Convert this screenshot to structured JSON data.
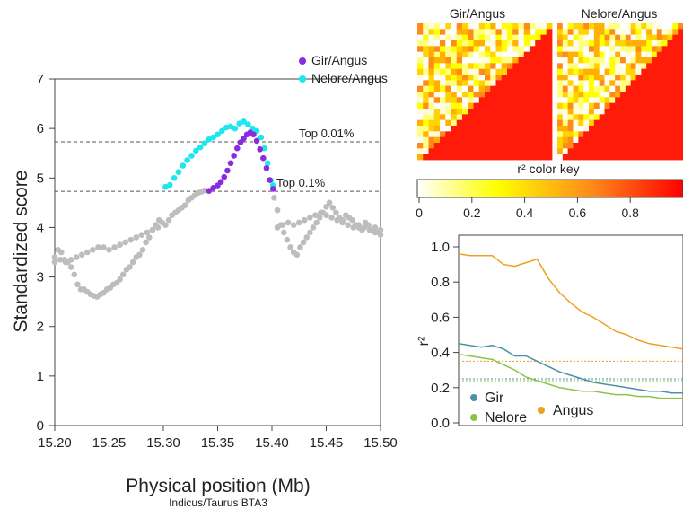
{
  "chart_data": [
    {
      "type": "scatter",
      "xlabel": "Physical position (Mb)",
      "subtitle": "Indicus/Taurus BTA3",
      "ylabel": "Standardized score",
      "xlim": [
        15.2,
        15.5
      ],
      "ylim": [
        0,
        7
      ],
      "x_ticks": [
        "15.20",
        "15.25",
        "15.30",
        "15.35",
        "15.40",
        "15.45",
        "15.50"
      ],
      "y_ticks": [
        "0",
        "1",
        "2",
        "3",
        "4",
        "5",
        "6",
        "7"
      ],
      "legend_position": "top-right",
      "thresholds": [
        {
          "label": "Top 0.01%",
          "value": 5.73
        },
        {
          "label": "Top 0.1%",
          "value": 4.73
        }
      ],
      "series": [
        {
          "name": "Gir/Angus",
          "color": "#8a2be2",
          "points": [
            [
              15.342,
              4.74
            ],
            [
              15.346,
              4.8
            ],
            [
              15.35,
              4.85
            ],
            [
              15.353,
              4.92
            ],
            [
              15.356,
              5.02
            ],
            [
              15.359,
              5.15
            ],
            [
              15.362,
              5.3
            ],
            [
              15.365,
              5.45
            ],
            [
              15.368,
              5.6
            ],
            [
              15.371,
              5.72
            ],
            [
              15.374,
              5.8
            ],
            [
              15.377,
              5.88
            ],
            [
              15.38,
              5.92
            ],
            [
              15.383,
              5.88
            ],
            [
              15.386,
              5.75
            ],
            [
              15.389,
              5.58
            ],
            [
              15.392,
              5.4
            ],
            [
              15.395,
              5.2
            ],
            [
              15.398,
              4.96
            ],
            [
              15.401,
              4.78
            ]
          ]
        },
        {
          "name": "Nelore/Angus",
          "color": "#1ee6ee",
          "points": [
            [
              15.302,
              4.82
            ],
            [
              15.306,
              4.86
            ],
            [
              15.31,
              5.0
            ],
            [
              15.314,
              5.12
            ],
            [
              15.318,
              5.25
            ],
            [
              15.322,
              5.36
            ],
            [
              15.326,
              5.45
            ],
            [
              15.33,
              5.55
            ],
            [
              15.334,
              5.62
            ],
            [
              15.338,
              5.7
            ],
            [
              15.342,
              5.78
            ],
            [
              15.346,
              5.82
            ],
            [
              15.35,
              5.88
            ],
            [
              15.354,
              5.95
            ],
            [
              15.358,
              6.02
            ],
            [
              15.362,
              6.04
            ],
            [
              15.366,
              6.0
            ],
            [
              15.37,
              6.1
            ],
            [
              15.374,
              6.14
            ],
            [
              15.378,
              6.08
            ],
            [
              15.382,
              6.0
            ],
            [
              15.386,
              5.95
            ],
            [
              15.39,
              5.82
            ],
            [
              15.393,
              5.6
            ],
            [
              15.396,
              5.3
            ],
            [
              15.399,
              4.95
            ],
            [
              15.401,
              4.85
            ]
          ]
        },
        {
          "name": "",
          "color": "#bdbdbd",
          "points": [
            [
              15.2,
              3.4
            ],
            [
              15.203,
              3.55
            ],
            [
              15.206,
              3.5
            ],
            [
              15.209,
              3.35
            ],
            [
              15.212,
              3.3
            ],
            [
              15.215,
              3.2
            ],
            [
              15.218,
              3.05
            ],
            [
              15.221,
              2.85
            ],
            [
              15.224,
              2.75
            ],
            [
              15.227,
              2.75
            ],
            [
              15.23,
              2.7
            ],
            [
              15.233,
              2.65
            ],
            [
              15.236,
              2.62
            ],
            [
              15.239,
              2.6
            ],
            [
              15.242,
              2.65
            ],
            [
              15.245,
              2.68
            ],
            [
              15.248,
              2.75
            ],
            [
              15.251,
              2.78
            ],
            [
              15.254,
              2.85
            ],
            [
              15.257,
              2.88
            ],
            [
              15.26,
              2.95
            ],
            [
              15.263,
              3.05
            ],
            [
              15.266,
              3.15
            ],
            [
              15.269,
              3.2
            ],
            [
              15.272,
              3.3
            ],
            [
              15.275,
              3.4
            ],
            [
              15.278,
              3.45
            ],
            [
              15.281,
              3.55
            ],
            [
              15.284,
              3.7
            ],
            [
              15.287,
              3.8
            ],
            [
              15.29,
              3.95
            ],
            [
              15.293,
              4.05
            ],
            [
              15.296,
              4.15
            ],
            [
              15.299,
              4.1
            ],
            [
              15.302,
              4.05
            ],
            [
              15.305,
              4.15
            ],
            [
              15.308,
              4.25
            ],
            [
              15.311,
              4.3
            ],
            [
              15.314,
              4.35
            ],
            [
              15.317,
              4.4
            ],
            [
              15.32,
              4.45
            ],
            [
              15.323,
              4.55
            ],
            [
              15.326,
              4.6
            ],
            [
              15.329,
              4.65
            ],
            [
              15.332,
              4.7
            ],
            [
              15.335,
              4.72
            ],
            [
              15.338,
              4.75
            ],
            [
              15.402,
              4.6
            ],
            [
              15.405,
              4.35
            ],
            [
              15.408,
              4.05
            ],
            [
              15.411,
              3.9
            ],
            [
              15.414,
              3.75
            ],
            [
              15.417,
              3.6
            ],
            [
              15.42,
              3.5
            ],
            [
              15.423,
              3.45
            ],
            [
              15.426,
              3.6
            ],
            [
              15.429,
              3.7
            ],
            [
              15.432,
              3.8
            ],
            [
              15.435,
              3.9
            ],
            [
              15.438,
              4.0
            ],
            [
              15.441,
              4.1
            ],
            [
              15.444,
              4.2
            ],
            [
              15.447,
              4.3
            ],
            [
              15.45,
              4.42
            ],
            [
              15.453,
              4.5
            ],
            [
              15.456,
              4.4
            ],
            [
              15.459,
              4.3
            ],
            [
              15.462,
              4.2
            ],
            [
              15.465,
              4.15
            ],
            [
              15.468,
              4.25
            ],
            [
              15.471,
              4.2
            ],
            [
              15.474,
              4.15
            ],
            [
              15.477,
              4.05
            ],
            [
              15.48,
              4.0
            ],
            [
              15.483,
              3.95
            ],
            [
              15.486,
              4.1
            ],
            [
              15.489,
              4.05
            ],
            [
              15.492,
              3.95
            ],
            [
              15.495,
              4.0
            ],
            [
              15.498,
              3.9
            ],
            [
              15.5,
              3.85
            ],
            [
              15.2,
              3.3
            ],
            [
              15.205,
              3.35
            ],
            [
              15.21,
              3.3
            ],
            [
              15.215,
              3.35
            ],
            [
              15.22,
              3.4
            ],
            [
              15.225,
              3.45
            ],
            [
              15.23,
              3.5
            ],
            [
              15.235,
              3.55
            ],
            [
              15.24,
              3.6
            ],
            [
              15.245,
              3.6
            ],
            [
              15.25,
              3.55
            ],
            [
              15.255,
              3.6
            ],
            [
              15.26,
              3.65
            ],
            [
              15.265,
              3.7
            ],
            [
              15.27,
              3.75
            ],
            [
              15.275,
              3.8
            ],
            [
              15.28,
              3.85
            ],
            [
              15.285,
              3.9
            ],
            [
              15.29,
              3.95
            ],
            [
              15.295,
              4.0
            ],
            [
              15.405,
              4.0
            ],
            [
              15.41,
              4.05
            ],
            [
              15.415,
              4.1
            ],
            [
              15.42,
              4.05
            ],
            [
              15.425,
              4.1
            ],
            [
              15.43,
              4.15
            ],
            [
              15.435,
              4.2
            ],
            [
              15.44,
              4.25
            ],
            [
              15.445,
              4.3
            ],
            [
              15.45,
              4.25
            ],
            [
              15.455,
              4.2
            ],
            [
              15.46,
              4.15
            ],
            [
              15.465,
              4.1
            ],
            [
              15.47,
              4.05
            ],
            [
              15.475,
              4.0
            ],
            [
              15.48,
              4.05
            ],
            [
              15.485,
              4.0
            ],
            [
              15.49,
              3.95
            ],
            [
              15.495,
              3.9
            ],
            [
              15.5,
              3.95
            ]
          ]
        }
      ]
    },
    {
      "type": "heatmap",
      "title": "Gir/Angus",
      "lower_triangle_value": 0.98
    },
    {
      "type": "heatmap",
      "title": "Nelore/Angus",
      "lower_triangle_value": 0.98
    },
    {
      "type": "colorbar",
      "title": "r² color key",
      "range": [
        0,
        1
      ],
      "ticks": [
        "0",
        "0.2",
        "0.4",
        "0.6",
        "0.8"
      ],
      "colors": [
        "#ffffff",
        "#ffff00",
        "#ff8c1a",
        "#ff0000"
      ]
    },
    {
      "type": "line",
      "ylabel": "r²",
      "ylim": [
        0,
        1.0
      ],
      "y_ticks": [
        "0.0",
        "0.2",
        "0.4",
        "0.6",
        "0.8",
        "1.0"
      ],
      "x": [
        0,
        1,
        2,
        3,
        4,
        5,
        6,
        7,
        8,
        9,
        10,
        11,
        12,
        13,
        14,
        15,
        16,
        17,
        18,
        19,
        20
      ],
      "legend_position": "bottom-left",
      "series": [
        {
          "name": "Angus",
          "color": "#f0a020",
          "values": [
            0.96,
            0.95,
            0.95,
            0.95,
            0.9,
            0.89,
            0.91,
            0.93,
            0.82,
            0.74,
            0.68,
            0.63,
            0.6,
            0.56,
            0.52,
            0.5,
            0.47,
            0.45,
            0.44,
            0.43,
            0.42
          ],
          "threshold": 0.35
        },
        {
          "name": "Gir",
          "color": "#4a90a8",
          "values": [
            0.45,
            0.44,
            0.43,
            0.44,
            0.42,
            0.38,
            0.38,
            0.35,
            0.32,
            0.29,
            0.27,
            0.25,
            0.23,
            0.22,
            0.21,
            0.2,
            0.19,
            0.18,
            0.18,
            0.17,
            0.17
          ],
          "threshold": 0.25
        },
        {
          "name": "Nelore",
          "color": "#8bc34a",
          "values": [
            0.39,
            0.38,
            0.37,
            0.36,
            0.33,
            0.3,
            0.26,
            0.24,
            0.22,
            0.2,
            0.19,
            0.18,
            0.18,
            0.17,
            0.16,
            0.16,
            0.15,
            0.15,
            0.14,
            0.14,
            0.14
          ],
          "threshold": 0.24
        }
      ]
    }
  ]
}
